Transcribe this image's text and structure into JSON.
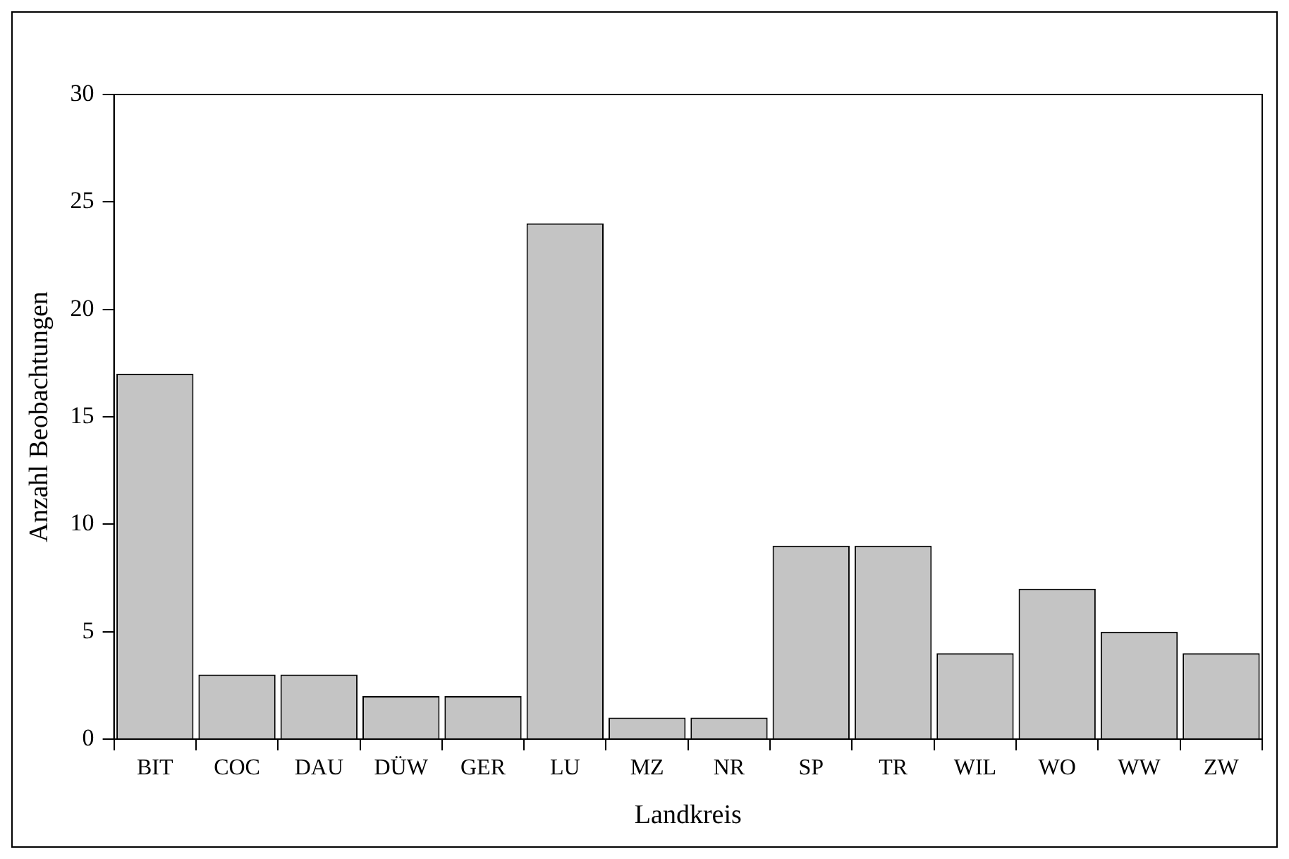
{
  "chart_data": {
    "type": "bar",
    "xlabel": "Landkreis",
    "ylabel": "Anzahl Beobachtungen",
    "categories": [
      "BIT",
      "COC",
      "DAU",
      "DÜW",
      "GER",
      "LU",
      "MZ",
      "NR",
      "SP",
      "TR",
      "WIL",
      "WO",
      "WW",
      "ZW"
    ],
    "values": [
      17,
      3,
      3,
      2,
      2,
      24,
      1,
      1,
      9,
      9,
      4,
      7,
      5,
      4
    ],
    "color": "#c4c4c4",
    "ylim": [
      0,
      30
    ],
    "yticks": [
      0,
      5,
      10,
      15,
      20,
      25,
      30
    ],
    "grid": false,
    "legend": false
  }
}
